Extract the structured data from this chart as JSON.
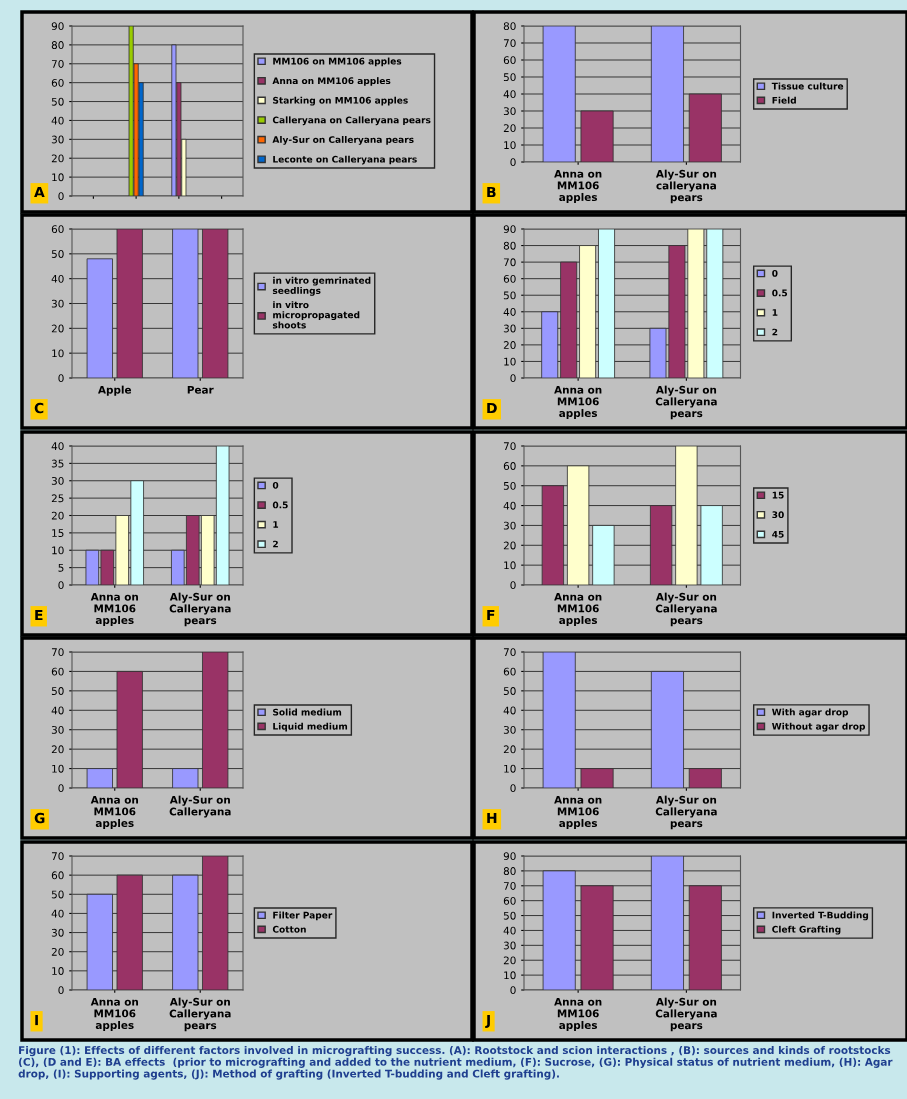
{
  "chart_data": [
    {
      "type": "bar",
      "title": "A",
      "categories": [
        null,
        null,
        null,
        null
      ],
      "ylim": [
        0,
        90
      ],
      "yticks": [
        0,
        10,
        20,
        30,
        40,
        50,
        60,
        70,
        80,
        90
      ],
      "grid": "y",
      "legend": "right",
      "series": [
        {
          "name": "MM106 on MM106 apples",
          "color": "#9999ff",
          "values": [
            null,
            null,
            80,
            null
          ]
        },
        {
          "name": "Anna on MM106 apples",
          "color": "#993366",
          "values": [
            null,
            null,
            60,
            null
          ]
        },
        {
          "name": "Starking on MM106 apples",
          "color": "#ffffcc",
          "values": [
            null,
            null,
            30,
            null
          ]
        },
        {
          "name": "Calleryana on Calleryana pears",
          "color": "#99cc00",
          "values": [
            null,
            90,
            null,
            null
          ]
        },
        {
          "name": "Aly-Sur on Calleryana pears",
          "color": "#ff6600",
          "values": [
            null,
            70,
            null,
            null
          ]
        },
        {
          "name": "Leconte on Calleryana pears",
          "color": "#0066cc",
          "values": [
            null,
            60,
            null,
            null
          ]
        }
      ]
    },
    {
      "type": "bar",
      "title": "B",
      "categories": [
        "Anna on\nMM106\napples",
        "Aly-Sur on\ncalleryana\npears"
      ],
      "ylim": [
        0,
        80
      ],
      "yticks": [
        0,
        10,
        20,
        30,
        40,
        50,
        60,
        70,
        80
      ],
      "grid": "y",
      "legend": "right",
      "series": [
        {
          "name": "Tissue culture",
          "color": "#9999ff",
          "values": [
            80,
            80
          ]
        },
        {
          "name": "Field",
          "color": "#993366",
          "values": [
            30,
            40
          ]
        }
      ]
    },
    {
      "type": "bar",
      "title": "C",
      "categories": [
        "Apple",
        "Pear"
      ],
      "ylim": [
        0,
        60
      ],
      "yticks": [
        0,
        10,
        20,
        30,
        40,
        50,
        60
      ],
      "grid": "y",
      "legend": "right",
      "series": [
        {
          "name": "in vitro gemrinated\nseedlings",
          "color": "#9999ff",
          "values": [
            48,
            60
          ]
        },
        {
          "name": "in vitro\nmicropropagated\nshoots",
          "color": "#993366",
          "values": [
            60,
            60
          ]
        }
      ]
    },
    {
      "type": "bar",
      "title": "D",
      "categories": [
        "Anna on\nMM106\napples",
        "Aly-Sur on\nCalleryana\npears"
      ],
      "ylim": [
        0,
        90
      ],
      "yticks": [
        0,
        10,
        20,
        30,
        40,
        50,
        60,
        70,
        80,
        90
      ],
      "grid": "y",
      "legend": "right",
      "series": [
        {
          "name": "0",
          "color": "#9999ff",
          "values": [
            40,
            30
          ]
        },
        {
          "name": "0.5",
          "color": "#993366",
          "values": [
            70,
            80
          ]
        },
        {
          "name": "1",
          "color": "#ffffcc",
          "values": [
            80,
            90
          ]
        },
        {
          "name": "2",
          "color": "#ccffff",
          "values": [
            90,
            90
          ]
        }
      ]
    },
    {
      "type": "bar",
      "title": "E",
      "categories": [
        "Anna on\nMM106\napples",
        "Aly-Sur on\nCalleryana\npears"
      ],
      "ylim": [
        0,
        40
      ],
      "yticks": [
        0,
        5,
        10,
        15,
        20,
        25,
        30,
        35,
        40
      ],
      "grid": "y",
      "legend": "right",
      "series": [
        {
          "name": "0",
          "color": "#9999ff",
          "values": [
            10,
            10
          ]
        },
        {
          "name": "0.5",
          "color": "#993366",
          "values": [
            10,
            20
          ]
        },
        {
          "name": "1",
          "color": "#ffffcc",
          "values": [
            20,
            20
          ]
        },
        {
          "name": "2",
          "color": "#ccffff",
          "values": [
            30,
            40
          ]
        }
      ]
    },
    {
      "type": "bar",
      "title": "F",
      "categories": [
        "Anna on\nMM106\napples",
        "Aly-Sur on\nCalleryana\npears"
      ],
      "ylim": [
        0,
        70
      ],
      "yticks": [
        0,
        10,
        20,
        30,
        40,
        50,
        60,
        70
      ],
      "grid": "y",
      "legend": "right",
      "series": [
        {
          "name": "15",
          "color": "#993366",
          "values": [
            50,
            40
          ]
        },
        {
          "name": "30",
          "color": "#ffffcc",
          "values": [
            60,
            70
          ]
        },
        {
          "name": "45",
          "color": "#ccffff",
          "values": [
            30,
            40
          ]
        }
      ]
    },
    {
      "type": "bar",
      "title": "G",
      "categories": [
        "Anna on\nMM106\napples",
        "Aly-Sur on\nCalleryana"
      ],
      "ylim": [
        0,
        70
      ],
      "yticks": [
        0,
        10,
        20,
        30,
        40,
        50,
        60,
        70
      ],
      "grid": "y",
      "legend": "right",
      "series": [
        {
          "name": "Solid medium",
          "color": "#9999ff",
          "values": [
            10,
            10
          ]
        },
        {
          "name": "Liquid medium",
          "color": "#993366",
          "values": [
            60,
            70
          ]
        }
      ]
    },
    {
      "type": "bar",
      "title": "H",
      "categories": [
        "Anna on\nMM106\napples",
        "Aly-Sur on\nCalleryana\npears"
      ],
      "ylim": [
        0,
        70
      ],
      "yticks": [
        0,
        10,
        20,
        30,
        40,
        50,
        60,
        70
      ],
      "grid": "y",
      "legend": "right",
      "series": [
        {
          "name": "With agar drop",
          "color": "#9999ff",
          "values": [
            70,
            60
          ]
        },
        {
          "name": "Without agar drop",
          "color": "#993366",
          "values": [
            10,
            10
          ]
        }
      ]
    },
    {
      "type": "bar",
      "title": "I",
      "categories": [
        "Anna on\nMM106\napples",
        "Aly-Sur on\nCalleryana\npears"
      ],
      "ylim": [
        0,
        70
      ],
      "yticks": [
        0,
        10,
        20,
        30,
        40,
        50,
        60,
        70
      ],
      "grid": "y",
      "legend": "right",
      "series": [
        {
          "name": "Filter Paper",
          "color": "#9999ff",
          "values": [
            50,
            60
          ]
        },
        {
          "name": "Cotton",
          "color": "#993366",
          "values": [
            60,
            70
          ]
        }
      ]
    },
    {
      "type": "bar",
      "title": "J",
      "categories": [
        "Anna on\nMM106\napples",
        "Aly-Sur on\nCalleryana\npears"
      ],
      "ylim": [
        0,
        90
      ],
      "yticks": [
        0,
        10,
        20,
        30,
        40,
        50,
        60,
        70,
        80,
        90
      ],
      "grid": "y",
      "legend": "right",
      "series": [
        {
          "name": "Inverted T-Budding",
          "color": "#9999ff",
          "values": [
            80,
            90
          ]
        },
        {
          "name": "Cleft Grafting",
          "color": "#993366",
          "values": [
            70,
            70
          ]
        }
      ],
      "annotations": [
        "Figure (1): Effects of different factors involved in micrografting success. (A): Rootstock and scion interactions , (B): sources and kinds of rootstocks (C), (D and E): BA effects  (prior to micrografting and added to the nutrient medium, (F): Sucrose, (G): Physical status of nutrient medium, (H): Agar drop, (I): Supporting agents, (J): Method of grafting (Inverted T-budding and Cleft grafting)."
      ]
    }
  ]
}
